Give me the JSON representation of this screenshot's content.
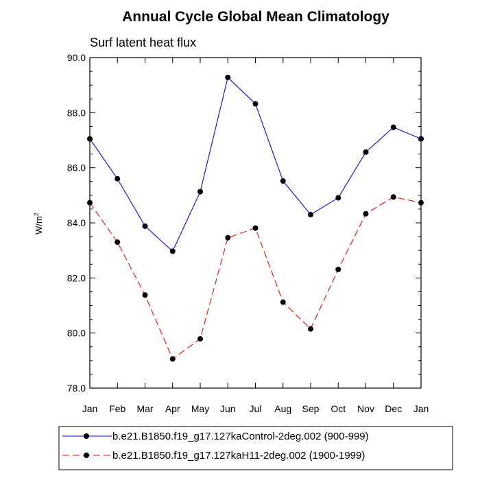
{
  "chart_data": {
    "type": "line",
    "title": "Annual Cycle Global Mean Climatology",
    "subtitle": "Surf latent heat flux",
    "ylabel": "W/m",
    "ylabel_sup": "2",
    "xlabel": "",
    "categories": [
      "Jan",
      "Feb",
      "Mar",
      "Apr",
      "May",
      "Jun",
      "Jul",
      "Aug",
      "Sep",
      "Oct",
      "Nov",
      "Dec",
      "Jan"
    ],
    "ylim": [
      78.0,
      90.0
    ],
    "yticks": [
      78.0,
      80.0,
      82.0,
      84.0,
      86.0,
      88.0,
      90.0
    ],
    "ytick_labels": [
      "78.0",
      "80.0",
      "82.0",
      "84.0",
      "86.0",
      "88.0",
      "90.0"
    ],
    "legend_position": "bottom",
    "series": [
      {
        "name": "b.e21.B1850.f19_g17.127kaControl-2deg.002 (900-999)",
        "color": "#0000ff",
        "style": "solid",
        "values": [
          87.05,
          85.6,
          83.88,
          82.97,
          85.13,
          89.28,
          88.32,
          85.52,
          84.3,
          84.91,
          86.57,
          87.47,
          87.05
        ]
      },
      {
        "name": "b.e21.B1850.f19_g17.127kaH11-2deg.002 (1900-1999)",
        "color": "#ff0000",
        "style": "dashed",
        "values": [
          84.73,
          83.3,
          81.38,
          79.06,
          79.79,
          83.46,
          83.81,
          81.12,
          80.15,
          82.31,
          84.33,
          84.94,
          84.73
        ]
      }
    ]
  }
}
